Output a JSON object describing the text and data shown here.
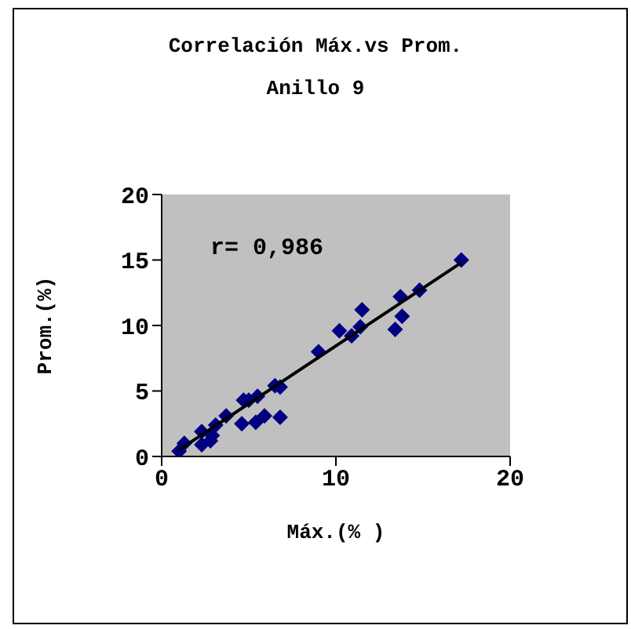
{
  "chart_data": {
    "type": "scatter",
    "title": "Correlación Máx.vs Prom.",
    "subtitle": "Anillo 9",
    "xlabel": "Máx.(% )",
    "ylabel": "Prom.(%)",
    "annotations": [
      "r= 0,986"
    ],
    "xlim": [
      0,
      20
    ],
    "xticks": [
      0,
      10,
      20
    ],
    "ylim": [
      0,
      20
    ],
    "yticks": [
      0,
      5,
      10,
      15,
      20
    ],
    "grid": false,
    "legend": false,
    "marker": "diamond",
    "series": [
      {
        "color": "#000080",
        "x": [
          1.0,
          1.3,
          2.3,
          2.3,
          2.8,
          2.9,
          3.1,
          3.7,
          4.6,
          4.7,
          5.0,
          5.4,
          5.5,
          5.9,
          6.5,
          6.8,
          6.8,
          9.0,
          10.2,
          10.9,
          11.4,
          11.5,
          13.4,
          13.7,
          13.8,
          14.8,
          17.2
        ],
        "values": [
          0.4,
          1.0,
          1.9,
          0.9,
          1.2,
          1.6,
          2.4,
          3.1,
          2.5,
          4.3,
          4.3,
          2.6,
          4.6,
          3.1,
          5.4,
          5.3,
          3.0,
          8.0,
          9.6,
          9.2,
          9.9,
          11.2,
          9.7,
          12.2,
          10.7,
          12.7,
          15.0
        ]
      },
      {
        "type": "line",
        "color": "#000000",
        "x": [
          1.0,
          17.2
        ],
        "values": [
          0.5,
          14.8
        ],
        "marker": "none",
        "line_style": "solid"
      }
    ]
  }
}
